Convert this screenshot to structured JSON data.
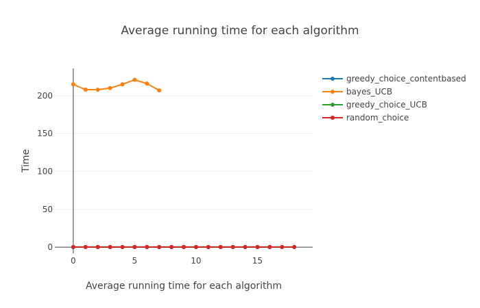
{
  "chart_data": {
    "type": "line",
    "title": "Average running time for each algorithm",
    "xlabel": "Average running time for each algorithm",
    "ylabel": "Time",
    "xlim": [
      -1.5,
      19.5
    ],
    "ylim": [
      -8,
      236
    ],
    "x_ticks": [
      0,
      5,
      10,
      15
    ],
    "y_ticks": [
      0,
      50,
      100,
      150,
      200
    ],
    "grid": true,
    "legend_position": "top-right",
    "series": [
      {
        "name": "greedy_choice_contentbased",
        "color": "#1f77b4",
        "x": [
          0,
          1,
          2,
          3,
          4,
          5,
          6,
          7,
          8,
          9,
          10,
          11,
          12,
          13,
          14,
          15,
          16,
          17,
          18
        ],
        "y": [
          0.3,
          0.3,
          0.3,
          0.3,
          0.3,
          0.3,
          0.3,
          0.3,
          0.3,
          0.3,
          0.3,
          0.3,
          0.3,
          0.3,
          0.3,
          0.3,
          0.3,
          0.3,
          0.3
        ]
      },
      {
        "name": "bayes_UCB",
        "color": "#ff7f0e",
        "x": [
          0,
          1,
          2,
          3,
          4,
          5,
          6,
          7
        ],
        "y": [
          215,
          208,
          208,
          210,
          215,
          221,
          216,
          207
        ]
      },
      {
        "name": "greedy_choice_UCB",
        "color": "#2ca02c",
        "x": [
          0,
          1,
          2,
          3,
          4,
          5,
          6,
          7,
          8,
          9,
          10,
          11,
          12,
          13,
          14,
          15,
          16,
          17,
          18
        ],
        "y": [
          0.2,
          0.2,
          0.2,
          0.2,
          0.2,
          0.2,
          0.2,
          0.2,
          0.2,
          0.2,
          0.2,
          0.2,
          0.2,
          0.2,
          0.2,
          0.2,
          0.2,
          0.2,
          0.2
        ]
      },
      {
        "name": "random_choice",
        "color": "#d62728",
        "x": [
          0,
          1,
          2,
          3,
          4,
          5,
          6,
          7,
          8,
          9,
          10,
          11,
          12,
          13,
          14,
          15,
          16,
          17,
          18
        ],
        "y": [
          0.1,
          0.1,
          0.1,
          0.1,
          0.1,
          0.1,
          0.1,
          0.1,
          0.1,
          0.1,
          0.1,
          0.1,
          0.1,
          0.1,
          0.1,
          0.1,
          0.1,
          0.1,
          0.1
        ]
      }
    ]
  }
}
